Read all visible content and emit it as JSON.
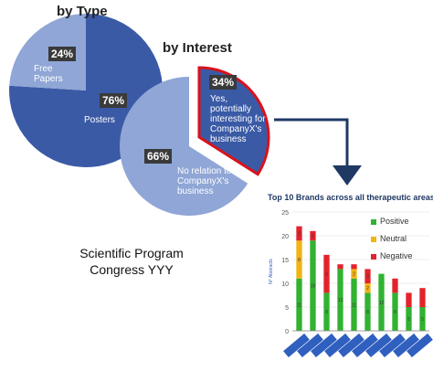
{
  "pie_type": {
    "title": "by Type",
    "slices": [
      {
        "pct": "24%",
        "label": "Free\nPapers",
        "value": 24
      },
      {
        "pct": "76%",
        "label": "Posters",
        "value": 76
      }
    ]
  },
  "pie_interest": {
    "title": "by Interest",
    "slices": [
      {
        "pct": "34%",
        "label": "Yes,\npotentially\ninteresting for\nCompanyX's\nbusiness",
        "value": 34
      },
      {
        "pct": "66%",
        "label": "No relation to\nCompanyX's\nbusiness",
        "value": 66
      }
    ]
  },
  "program_text": "Scientific Program\nCongress YYY",
  "colors": {
    "pie_dark": "#3a5aa6",
    "pie_light": "#8fa6d6",
    "highlight_border": "#d9121b",
    "arrow": "#1f3864",
    "positive": "#31b231",
    "neutral": "#f2b315",
    "negative": "#e3232c",
    "brand_label": "#2f5fbf"
  },
  "chart_data": {
    "type": "bar",
    "stacked": true,
    "title": "Top 10 Brands across all therapeutic areas",
    "ylabel": "N° Abstracts",
    "ylim": [
      0,
      25
    ],
    "yticks": [
      0,
      5,
      10,
      15,
      20,
      25
    ],
    "categories": [
      "1",
      "2",
      "3",
      "4",
      "5",
      "6",
      "7",
      "8",
      "9",
      "10"
    ],
    "series": [
      {
        "name": "Positive",
        "values": [
          11,
          19,
          8,
          13,
          11,
          8,
          12,
          8,
          5,
          5
        ]
      },
      {
        "name": "Neutral",
        "values": [
          8,
          0,
          0,
          0,
          2,
          2,
          0,
          0,
          0,
          0
        ]
      },
      {
        "name": "Negative",
        "values": [
          3,
          2,
          8,
          1,
          1,
          3,
          0,
          3,
          3,
          4
        ]
      }
    ],
    "segment_labels": [
      [
        "11",
        "8",
        "3"
      ],
      [
        "19",
        "",
        "2"
      ],
      [
        "8",
        "",
        "8"
      ],
      [
        "13",
        "",
        ""
      ],
      [
        "11",
        "2",
        ""
      ],
      [
        "8",
        "2",
        "3"
      ],
      [
        "12",
        "",
        ""
      ],
      [
        "8",
        "",
        ""
      ],
      [
        "5",
        "",
        ""
      ],
      [
        "5",
        "",
        ""
      ]
    ],
    "legend": [
      "Positive",
      "Neutral",
      "Negative"
    ],
    "legend_position": "right",
    "grid": true
  }
}
